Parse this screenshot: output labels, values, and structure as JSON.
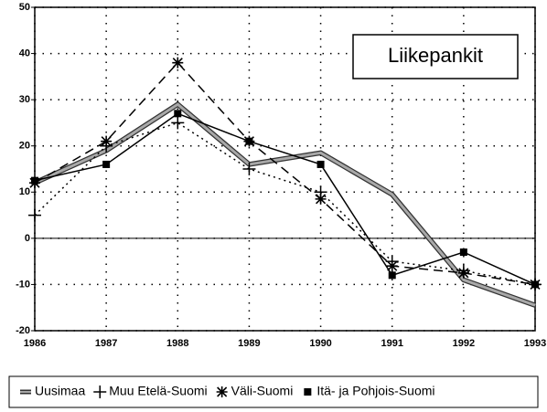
{
  "chart_data": {
    "type": "line",
    "annotation": "Liikepankit",
    "x": [
      1986,
      1987,
      1988,
      1989,
      1990,
      1991,
      1992,
      1993
    ],
    "xlim": [
      1986,
      1993
    ],
    "xticks": [
      1986,
      1987,
      1988,
      1989,
      1990,
      1991,
      1992,
      1993
    ],
    "ylim": [
      -20,
      50
    ],
    "yticks": [
      -20,
      -10,
      0,
      10,
      20,
      30,
      40,
      50
    ],
    "grid": true,
    "legend": "bottom",
    "series": [
      {
        "name": "Uusimaa",
        "color": "#a8a8a8",
        "marker": "none",
        "dash": "solid",
        "values": [
          12,
          19,
          29,
          16,
          18.5,
          9.5,
          -9,
          -14.5
        ]
      },
      {
        "name": "Muu Etelä-Suomi",
        "color": "#000000",
        "marker": "plus",
        "dash": "dotted",
        "values": [
          5,
          20,
          25,
          15,
          10,
          -5,
          -7,
          -10
        ]
      },
      {
        "name": "Väli-Suomi",
        "color": "#000000",
        "marker": "asterisk",
        "dash": "dashed",
        "values": [
          12,
          21,
          38,
          21,
          8.5,
          -6,
          -7.5,
          -10
        ]
      },
      {
        "name": "Itä- ja Pohjois-Suomi",
        "color": "#000000",
        "marker": "square",
        "dash": "solid",
        "values": [
          12.5,
          16,
          27,
          21,
          16,
          -8,
          -3,
          -10
        ]
      }
    ]
  }
}
